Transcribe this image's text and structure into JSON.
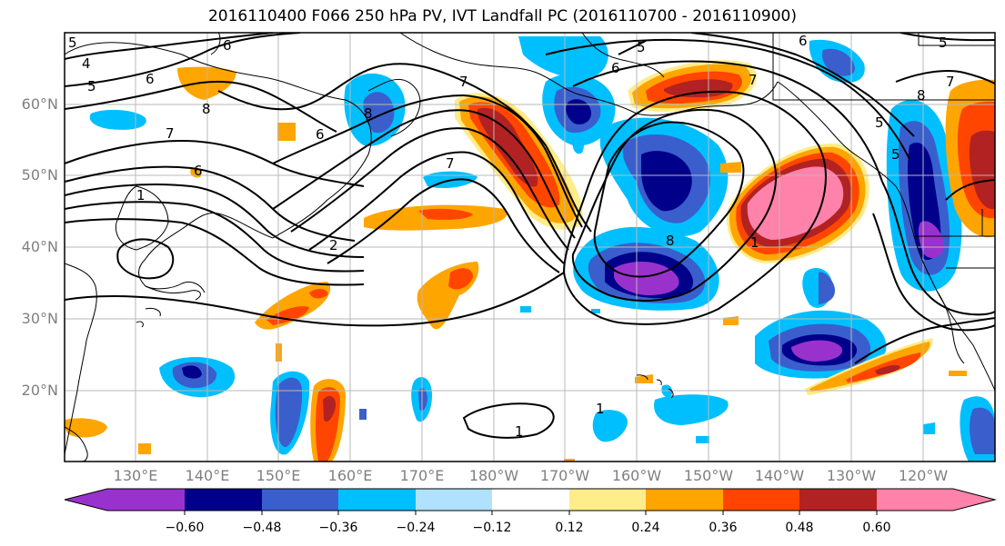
{
  "title": "2016110400 F066 250 hPa PV, IVT Landfall PC (2016110700 - 2016110900)",
  "latitude_labels": [
    "60°N",
    "50°N",
    "40°N",
    "30°N",
    "20°N"
  ],
  "longitude_labels": [
    "130°E",
    "140°E",
    "150°E",
    "160°E",
    "170°E",
    "180°W",
    "170°W",
    "160°W",
    "150°W",
    "140°W",
    "130°W",
    "120°W"
  ],
  "colorbar": {
    "tick_labels": [
      "−0.60",
      "−0.48",
      "−0.36",
      "−0.24",
      "−0.12",
      "0.12",
      "0.24",
      "0.36",
      "0.48",
      "0.60"
    ],
    "colors": [
      "#9932cc",
      "#00008b",
      "#3a5fcd",
      "#00bfff",
      "#b0e2ff",
      "#ffffff",
      "#ffec8b",
      "#ffa500",
      "#ff4500",
      "#b22222",
      "#ff82ab"
    ]
  },
  "contour_labels": [
    "5",
    "6",
    "4",
    "5",
    "6",
    "7",
    "8",
    "7",
    "6",
    "8",
    "6",
    "1",
    "7",
    "2",
    "8",
    "6",
    "5",
    "6",
    "5",
    "8",
    "7",
    "5",
    "1",
    "1",
    "7",
    "1",
    "5"
  ]
}
